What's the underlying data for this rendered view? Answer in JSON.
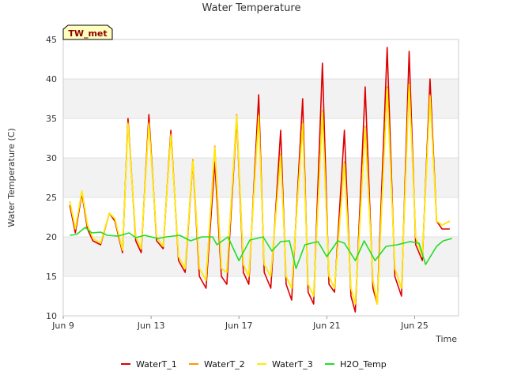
{
  "chart_data": {
    "type": "line",
    "title": "Water Temperature",
    "xlabel": "Time",
    "ylabel": "Water Temperature (C)",
    "site_badge": "TW_met",
    "x_ticks": [
      "Jun 9",
      "Jun 13",
      "Jun 17",
      "Jun 21",
      "Jun 25"
    ],
    "x_tick_days": [
      9,
      13,
      17,
      21,
      25
    ],
    "xlim": [
      9,
      27
    ],
    "y_ticks": [
      10,
      15,
      20,
      25,
      30,
      35,
      40,
      45
    ],
    "ylim": [
      10,
      45
    ],
    "grid": "horizontal bands",
    "legend_position": "bottom",
    "colors": {
      "WaterT_1": "#dd0000",
      "WaterT_2": "#ff9900",
      "WaterT_3": "#ffee00",
      "H2O_Temp": "#22dd22",
      "band": "#f2f2f2",
      "badge_fill": "#ffffc0"
    },
    "series": [
      {
        "name": "WaterT_1",
        "x": [
          9.3,
          9.55,
          9.85,
          10.1,
          10.35,
          10.7,
          11.1,
          11.35,
          11.7,
          11.95,
          12.3,
          12.55,
          12.9,
          13.25,
          13.55,
          13.9,
          14.25,
          14.55,
          14.9,
          15.2,
          15.5,
          15.9,
          16.2,
          16.45,
          16.9,
          17.2,
          17.45,
          17.9,
          18.15,
          18.45,
          18.9,
          19.15,
          19.4,
          19.9,
          20.15,
          20.4,
          20.8,
          21.1,
          21.35,
          21.8,
          22.1,
          22.3,
          22.75,
          23.1,
          23.3,
          23.75,
          24.1,
          24.4,
          24.75,
          25.05,
          25.35,
          25.7,
          26.0,
          26.25,
          26.6
        ],
        "values": [
          24,
          20.5,
          25.5,
          21,
          19.5,
          19,
          23,
          22,
          18,
          35,
          19.5,
          18,
          35.5,
          19.5,
          18.5,
          33.5,
          17,
          15.5,
          29.5,
          15,
          13.5,
          29.5,
          15,
          14,
          35,
          15.5,
          14,
          38,
          15.5,
          13.5,
          33.5,
          14,
          12,
          37.5,
          13,
          11.5,
          42,
          14,
          13,
          33.5,
          12.5,
          10.5,
          39,
          13.5,
          11.5,
          44,
          15,
          12.5,
          43.5,
          19,
          17,
          40,
          22,
          21,
          21
        ]
      },
      {
        "name": "WaterT_2",
        "x": [
          9.3,
          9.55,
          9.85,
          10.1,
          10.35,
          10.7,
          11.1,
          11.35,
          11.7,
          11.95,
          12.3,
          12.55,
          12.9,
          13.25,
          13.55,
          13.9,
          14.25,
          14.55,
          14.9,
          15.2,
          15.5,
          15.9,
          16.2,
          16.45,
          16.9,
          17.2,
          17.45,
          17.9,
          18.15,
          18.45,
          18.9,
          19.15,
          19.4,
          19.9,
          20.15,
          20.4,
          20.8,
          21.1,
          21.35,
          21.8,
          22.1,
          22.3,
          22.75,
          23.1,
          23.3,
          23.75,
          24.1,
          24.4,
          24.75,
          25.05,
          25.35,
          25.7,
          26.0,
          26.25,
          26.6
        ],
        "values": [
          24.5,
          21,
          25.8,
          21.5,
          19.8,
          19.2,
          23,
          22.3,
          18.3,
          34.5,
          20,
          18.5,
          34.5,
          20,
          18.8,
          33,
          17.5,
          16,
          29.8,
          16,
          14.5,
          31.5,
          16,
          15.5,
          35.5,
          16.5,
          15,
          35.5,
          16.5,
          15,
          30.5,
          15,
          13.5,
          34.5,
          14,
          12.5,
          36,
          15,
          13.5,
          29.5,
          13.5,
          11.5,
          34,
          14.5,
          11.5,
          39,
          16,
          13.5,
          39.5,
          20,
          17.5,
          38,
          22,
          21.5,
          22
        ]
      },
      {
        "name": "WaterT_3",
        "x": [
          9.3,
          9.55,
          9.85,
          10.1,
          10.35,
          10.7,
          11.1,
          11.35,
          11.7,
          11.95,
          12.3,
          12.55,
          12.9,
          13.25,
          13.55,
          13.9,
          14.25,
          14.55,
          14.9,
          15.2,
          15.5,
          15.9,
          16.2,
          16.45,
          16.9,
          17.2,
          17.45,
          17.9,
          18.15,
          18.45,
          18.9,
          19.15,
          19.4,
          19.9,
          20.15,
          20.4,
          20.8,
          21.1,
          21.35,
          21.8,
          22.1,
          22.3,
          22.75,
          23.1,
          23.3,
          23.75,
          24.1,
          24.4,
          24.75,
          25.05,
          25.35,
          25.7,
          26.0,
          26.25,
          26.6
        ],
        "values": [
          24.5,
          21,
          25.8,
          21.5,
          19.8,
          19.2,
          23,
          22.3,
          18.3,
          34.3,
          20,
          18.5,
          34.3,
          20,
          18.8,
          32.8,
          17.5,
          16,
          29.6,
          16,
          14.5,
          31.3,
          16,
          15.5,
          35.3,
          16.5,
          15,
          35.3,
          16.5,
          15,
          30.3,
          15,
          13.5,
          34.3,
          14,
          12.5,
          35.8,
          15,
          13.5,
          29.3,
          13.5,
          11.5,
          33.8,
          14.5,
          11.5,
          38.8,
          16,
          13.5,
          39.3,
          20,
          17.5,
          37.8,
          22,
          21.5,
          22
        ]
      },
      {
        "name": "H2O_Temp",
        "x": [
          9.3,
          9.6,
          10.0,
          10.3,
          10.7,
          11.0,
          11.5,
          12.0,
          12.3,
          12.7,
          13.3,
          13.7,
          14.3,
          14.8,
          15.3,
          15.8,
          16.0,
          16.5,
          17.0,
          17.5,
          18.1,
          18.5,
          18.9,
          19.3,
          19.6,
          20.0,
          20.6,
          21.0,
          21.5,
          21.8,
          22.3,
          22.7,
          23.2,
          23.7,
          24.2,
          24.8,
          25.2,
          25.5,
          26.0,
          26.3,
          26.7
        ],
        "values": [
          20.2,
          20.3,
          21.2,
          20.5,
          20.6,
          20.2,
          20.1,
          20.5,
          19.9,
          20.2,
          19.8,
          20.0,
          20.2,
          19.5,
          20.0,
          20.0,
          19.0,
          20.0,
          17.0,
          19.6,
          20.0,
          18.2,
          19.4,
          19.5,
          16.0,
          19.0,
          19.4,
          17.5,
          19.5,
          19.2,
          17.0,
          19.5,
          17.0,
          18.8,
          19.0,
          19.4,
          19.2,
          16.5,
          18.8,
          19.5,
          19.8
        ]
      }
    ]
  }
}
